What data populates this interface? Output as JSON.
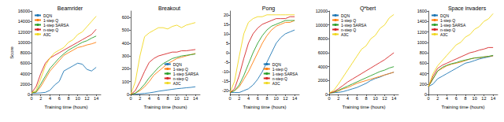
{
  "chart_data": [
    {
      "type": "line",
      "title": "Beamrider",
      "x_label": "Training time (hours)",
      "y_label": "Score",
      "x": [
        0,
        1,
        2,
        3,
        4,
        5,
        6,
        7,
        8,
        9,
        10,
        11,
        12,
        13,
        14
      ],
      "xlim": [
        0,
        15
      ],
      "xticks": [
        0,
        2,
        4,
        6,
        8,
        10,
        12,
        14
      ],
      "ylim": [
        0,
        16000
      ],
      "yticks": [
        0,
        2000,
        4000,
        6000,
        8000,
        10000,
        12000,
        14000,
        16000
      ],
      "grid": false,
      "legend": "upper left",
      "series": [
        {
          "name": "DQN",
          "color": "#1f77b4",
          "values": [
            200,
            250,
            300,
            400,
            800,
            1800,
            2500,
            4500,
            5000,
            5500,
            6000,
            5800,
            4800,
            4500,
            5200
          ]
        },
        {
          "name": "1-step Q",
          "color": "#ff7f0e",
          "values": [
            300,
            400,
            1500,
            3000,
            4500,
            5500,
            6500,
            7500,
            8000,
            8500,
            9000,
            9200,
            9500,
            9700,
            10000
          ]
        },
        {
          "name": "1-step SARSA",
          "color": "#2ca02c",
          "values": [
            300,
            500,
            2000,
            3500,
            5000,
            6000,
            7000,
            7800,
            8500,
            9000,
            9500,
            10000,
            10300,
            10800,
            11200
          ]
        },
        {
          "name": "n-step Q",
          "color": "#d62728",
          "values": [
            300,
            1500,
            4000,
            6000,
            7000,
            7500,
            8000,
            8500,
            9000,
            9500,
            10000,
            10500,
            11000,
            11500,
            12500
          ]
        },
        {
          "name": "A3C",
          "color": "#f0d820",
          "values": [
            300,
            800,
            3000,
            5500,
            7000,
            8000,
            8500,
            9000,
            10000,
            10500,
            11500,
            12000,
            13000,
            14000,
            15000
          ]
        }
      ]
    },
    {
      "type": "line",
      "title": "Breakout",
      "x_label": "Training time (hours)",
      "x": [
        0,
        1,
        2,
        3,
        4,
        5,
        6,
        7,
        8,
        9,
        10,
        11,
        12,
        13,
        14
      ],
      "xlim": [
        0,
        15
      ],
      "xticks": [
        0,
        2,
        4,
        6,
        8,
        10,
        12,
        14
      ],
      "ylim": [
        0,
        650
      ],
      "yticks": [
        0,
        100,
        200,
        300,
        400,
        500,
        600
      ],
      "grid": false,
      "legend": "lower right",
      "series": [
        {
          "name": "DQN",
          "color": "#1f77b4",
          "values": [
            0,
            2,
            5,
            8,
            12,
            18,
            25,
            30,
            35,
            40,
            45,
            48,
            52,
            55,
            60
          ]
        },
        {
          "name": "1-step Q",
          "color": "#ff7f0e",
          "values": [
            0,
            10,
            30,
            60,
            100,
            150,
            180,
            210,
            240,
            260,
            280,
            290,
            300,
            310,
            320
          ]
        },
        {
          "name": "1-step SARSA",
          "color": "#2ca02c",
          "values": [
            0,
            10,
            40,
            80,
            130,
            170,
            210,
            240,
            260,
            280,
            290,
            300,
            305,
            310,
            315
          ]
        },
        {
          "name": "n-step Q",
          "color": "#d62728",
          "values": [
            0,
            30,
            100,
            180,
            250,
            280,
            300,
            310,
            320,
            330,
            330,
            340,
            340,
            345,
            350
          ]
        },
        {
          "name": "A3C",
          "color": "#f0d820",
          "values": [
            0,
            100,
            300,
            450,
            480,
            500,
            520,
            520,
            510,
            530,
            540,
            520,
            540,
            550,
            560
          ]
        }
      ]
    },
    {
      "type": "line",
      "title": "Pong",
      "x_label": "Training time (hours)",
      "x": [
        0,
        1,
        2,
        3,
        4,
        5,
        6,
        7,
        8,
        9,
        10,
        11,
        12,
        13,
        14
      ],
      "xlim": [
        0,
        15
      ],
      "xticks": [
        0,
        2,
        4,
        6,
        8,
        10,
        12,
        14
      ],
      "ylim": [
        -22,
        22
      ],
      "yticks": [
        -20,
        -15,
        -10,
        -5,
        0,
        5,
        10,
        15,
        20
      ],
      "grid": false,
      "legend": "lower right",
      "series": [
        {
          "name": "DQN",
          "color": "#1f77b4",
          "values": [
            -21,
            -21,
            -21,
            -20,
            -19,
            -17,
            -14,
            -10,
            -5,
            0,
            5,
            8,
            10,
            11,
            12
          ]
        },
        {
          "name": "1-step Q",
          "color": "#ff7f0e",
          "values": [
            -21,
            -20,
            -18,
            -14,
            -10,
            -5,
            0,
            5,
            9,
            12,
            14,
            15,
            16,
            16,
            17
          ]
        },
        {
          "name": "1-step SARSA",
          "color": "#2ca02c",
          "values": [
            -21,
            -20,
            -17,
            -12,
            -6,
            0,
            5,
            9,
            12,
            14,
            15,
            16,
            17,
            17,
            17
          ]
        },
        {
          "name": "n-step Q",
          "color": "#d62728",
          "values": [
            -21,
            -19,
            -12,
            -3,
            5,
            10,
            13,
            15,
            16,
            17,
            18,
            18,
            18,
            19,
            19
          ]
        },
        {
          "name": "A3C",
          "color": "#f0d820",
          "values": [
            -21,
            -15,
            -2,
            10,
            16,
            18,
            19,
            19,
            20,
            20,
            20,
            20,
            20,
            20,
            20
          ]
        }
      ]
    },
    {
      "type": "line",
      "title": "Q*bert",
      "x_label": "Training time (hours)",
      "x": [
        0,
        1,
        2,
        3,
        4,
        5,
        6,
        7,
        8,
        9,
        10,
        11,
        12,
        13,
        14
      ],
      "xlim": [
        0,
        15
      ],
      "xticks": [
        0,
        2,
        4,
        6,
        8,
        10,
        12,
        14
      ],
      "ylim": [
        0,
        12000
      ],
      "yticks": [
        0,
        2000,
        4000,
        6000,
        8000,
        10000,
        12000
      ],
      "grid": false,
      "legend": "upper left",
      "series": [
        {
          "name": "DQN",
          "color": "#1f77b4",
          "values": [
            200,
            250,
            300,
            400,
            600,
            800,
            1000,
            1300,
            1600,
            2000,
            2300,
            2500,
            2800,
            3000,
            3200
          ]
        },
        {
          "name": "1-step Q",
          "color": "#ff7f0e",
          "values": [
            200,
            300,
            500,
            800,
            1000,
            1300,
            1600,
            1800,
            2000,
            2200,
            2400,
            2600,
            2800,
            3000,
            3200
          ]
        },
        {
          "name": "1-step SARSA",
          "color": "#2ca02c",
          "values": [
            200,
            300,
            600,
            900,
            1200,
            1500,
            1800,
            2100,
            2400,
            2700,
            3000,
            3300,
            3500,
            3800,
            4000
          ]
        },
        {
          "name": "n-step Q",
          "color": "#d62728",
          "values": [
            200,
            400,
            800,
            1300,
            1800,
            2200,
            2600,
            3000,
            3400,
            3800,
            4200,
            4600,
            5000,
            5500,
            6000
          ]
        },
        {
          "name": "A3C",
          "color": "#f0d820",
          "values": [
            200,
            600,
            1500,
            2500,
            3500,
            4500,
            5500,
            6500,
            7000,
            8000,
            8500,
            9500,
            10000,
            11000,
            11500
          ]
        }
      ]
    },
    {
      "type": "line",
      "title": "Space invaders",
      "x_label": "Training time (hours)",
      "x": [
        0,
        1,
        2,
        3,
        4,
        5,
        6,
        7,
        8,
        9,
        10,
        11,
        12,
        13,
        14
      ],
      "xlim": [
        0,
        15
      ],
      "xticks": [
        0,
        2,
        4,
        6,
        8,
        10,
        12,
        14
      ],
      "ylim": [
        0,
        1600
      ],
      "yticks": [
        0,
        200,
        400,
        600,
        800,
        1000,
        1200,
        1400,
        1600
      ],
      "grid": false,
      "legend": "upper left",
      "series": [
        {
          "name": "DQN",
          "color": "#1f77b4",
          "values": [
            150,
            200,
            300,
            350,
            400,
            450,
            500,
            550,
            600,
            620,
            650,
            680,
            700,
            720,
            740
          ]
        },
        {
          "name": "1-step Q",
          "color": "#ff7f0e",
          "values": [
            150,
            300,
            450,
            500,
            550,
            580,
            600,
            620,
            650,
            680,
            700,
            700,
            720,
            730,
            740
          ]
        },
        {
          "name": "1-step SARSA",
          "color": "#2ca02c",
          "values": [
            150,
            300,
            450,
            520,
            560,
            590,
            610,
            640,
            660,
            680,
            700,
            710,
            720,
            730,
            750
          ]
        },
        {
          "name": "n-step Q",
          "color": "#d62728",
          "values": [
            150,
            350,
            500,
            560,
            600,
            640,
            680,
            720,
            760,
            800,
            820,
            850,
            870,
            900,
            900
          ]
        },
        {
          "name": "A3C",
          "color": "#f0d820",
          "values": [
            150,
            400,
            550,
            650,
            750,
            850,
            950,
            1000,
            1100,
            1150,
            1250,
            1300,
            1400,
            1450,
            1550
          ]
        }
      ]
    }
  ]
}
